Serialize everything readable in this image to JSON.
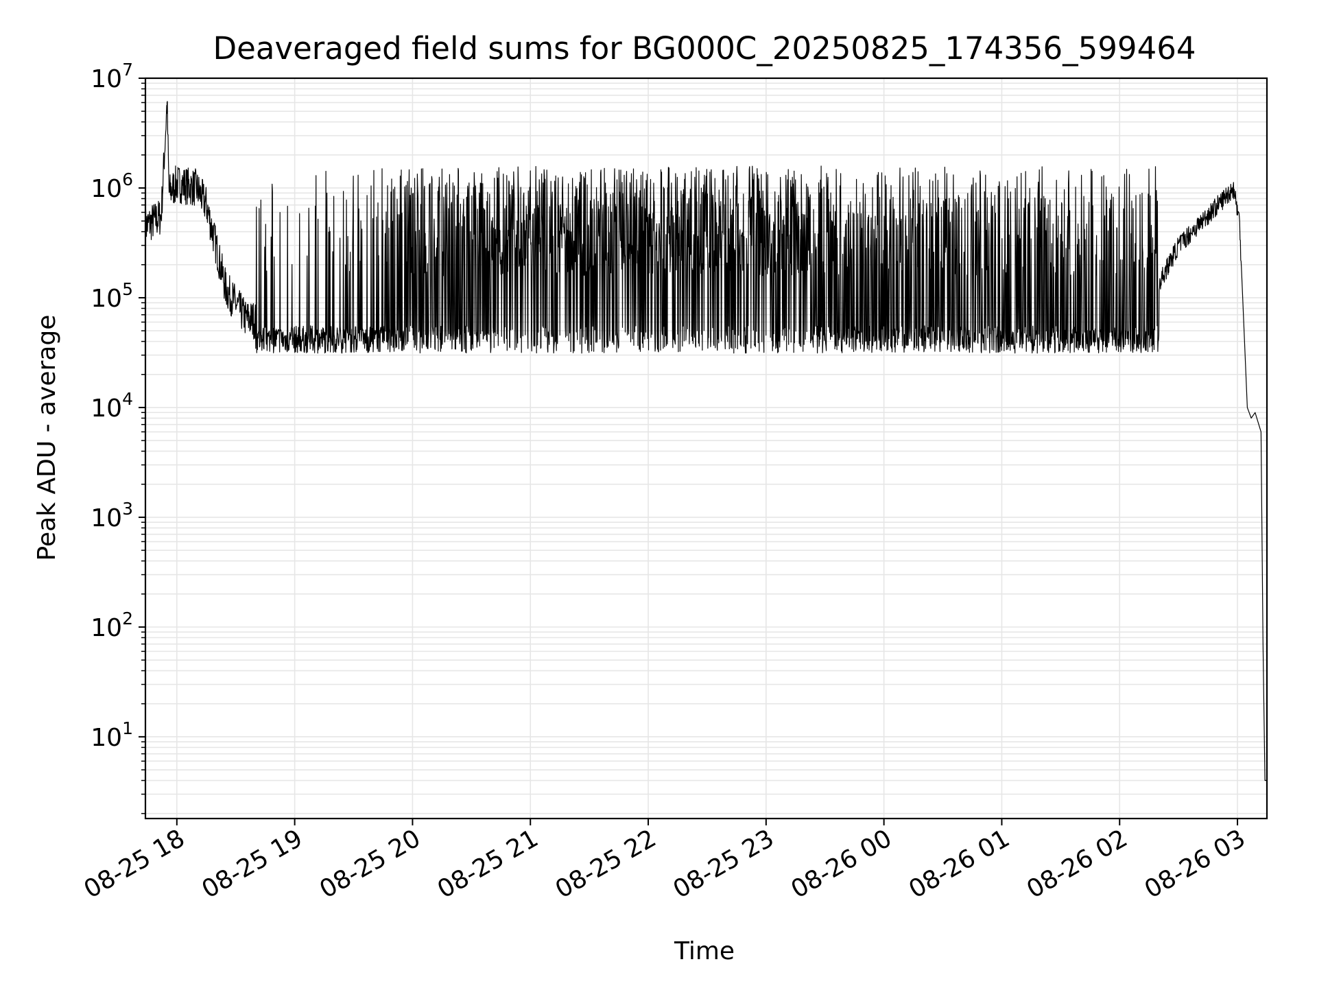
{
  "chart_data": {
    "type": "line",
    "title": "Deaveraged field sums for BG000C_20250825_174356_599464",
    "xlabel": "Time",
    "ylabel": "Peak ADU - average",
    "yscale": "log",
    "ylim": [
      1.8,
      10000000
    ],
    "xlim": [
      "2025-08-25 17:44",
      "2025-08-26 03:15"
    ],
    "grid": true,
    "line_color": "#000000",
    "grid_color": "#e6e6e6",
    "x_tick_labels": [
      "08-25 18",
      "08-25 19",
      "08-25 20",
      "08-25 21",
      "08-25 22",
      "08-25 23",
      "08-26 00",
      "08-26 01",
      "08-26 02",
      "08-26 03"
    ],
    "x_ticks": [
      "2025-08-25 18:00",
      "2025-08-25 19:00",
      "2025-08-25 20:00",
      "2025-08-25 21:00",
      "2025-08-25 22:00",
      "2025-08-25 23:00",
      "2025-08-26 00:00",
      "2025-08-26 01:00",
      "2025-08-26 02:00",
      "2025-08-26 03:00"
    ],
    "y_tick_labels": [
      {
        "base": "10",
        "exp": "1"
      },
      {
        "base": "10",
        "exp": "2"
      },
      {
        "base": "10",
        "exp": "3"
      },
      {
        "base": "10",
        "exp": "4"
      },
      {
        "base": "10",
        "exp": "5"
      },
      {
        "base": "10",
        "exp": "6"
      },
      {
        "base": "10",
        "exp": "7"
      }
    ],
    "y_ticks": [
      10,
      100,
      1000,
      10000,
      100000,
      1000000,
      10000000
    ],
    "series": [
      {
        "values": {
          "x": [
            "2025-08-25 17:44",
            "2025-08-25 17:52",
            "2025-08-25 17:55",
            "2025-08-25 17:56",
            "2025-08-25 18:00",
            "2025-08-25 18:10",
            "2025-08-25 18:15",
            "2025-08-25 18:25",
            "2025-08-25 18:35",
            "2025-08-25 18:45",
            "2025-08-25 19:30",
            "2025-08-25 19:50",
            "2025-08-25 20:05",
            "2025-08-25 20:15",
            "2025-08-25 21:00",
            "2025-08-25 21:35",
            "2025-08-25 22:20",
            "2025-08-25 23:30",
            "2025-08-26 01:00",
            "2025-08-26 02:10",
            "2025-08-26 02:30",
            "2025-08-26 02:50",
            "2025-08-26 02:58",
            "2025-08-26 03:01",
            "2025-08-26 03:05",
            "2025-08-26 03:07",
            "2025-08-26 03:09",
            "2025-08-26 03:12",
            "2025-08-26 03:13",
            "2025-08-26 03:14",
            "2025-08-26 03:15"
          ],
          "y": [
            450000,
            550000,
            6000000,
            900000,
            1100000,
            1000000,
            700000,
            120000,
            65000,
            60000,
            70000,
            90000,
            150000,
            700000,
            900000,
            500000,
            800000,
            300000,
            150000,
            60000,
            300000,
            700000,
            1000000,
            500000,
            10000,
            8000,
            9000,
            6000,
            70,
            4,
            4
          ]
        }
      }
    ]
  }
}
